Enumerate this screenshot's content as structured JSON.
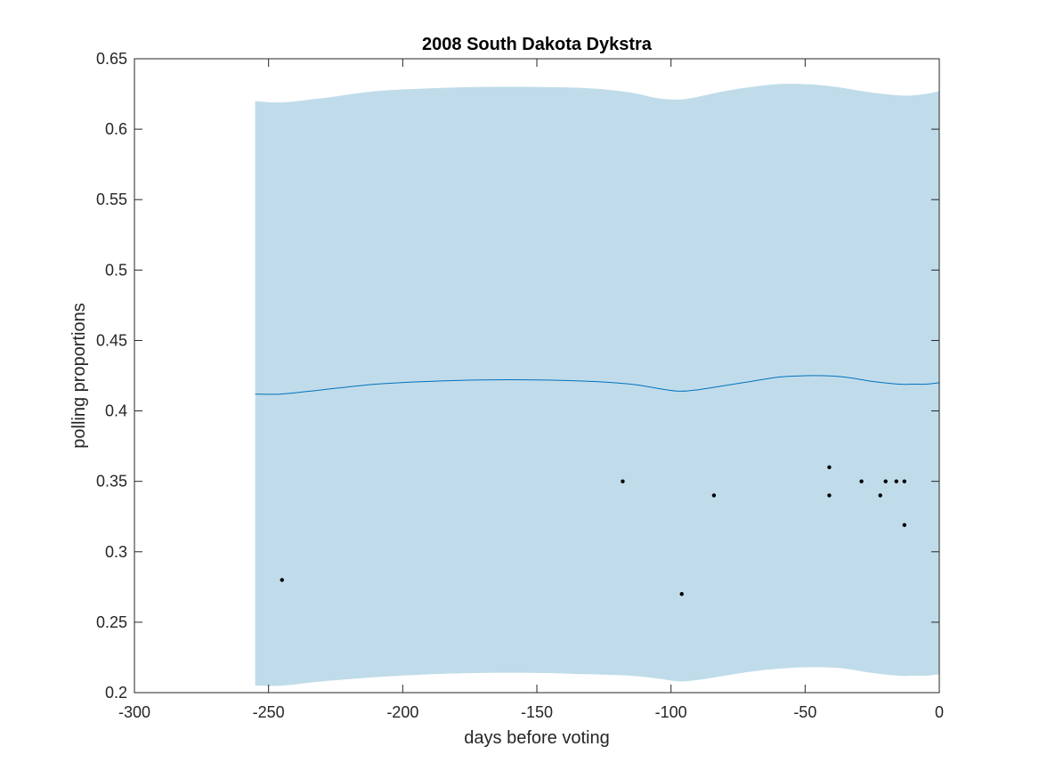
{
  "chart_data": {
    "type": "line",
    "title": "2008 South Dakota Dykstra",
    "xlabel": "days before voting",
    "ylabel": "polling proportions",
    "xlim": [
      -300,
      0
    ],
    "ylim": [
      0.2,
      0.65
    ],
    "xticks": [
      -300,
      -250,
      -200,
      -150,
      -100,
      -50,
      0
    ],
    "xtick_labels": [
      "-300",
      "-250",
      "-200",
      "-150",
      "-100",
      "-50",
      "0"
    ],
    "yticks": [
      0.2,
      0.25,
      0.3,
      0.35,
      0.4,
      0.45,
      0.5,
      0.55,
      0.6,
      0.65
    ],
    "ytick_labels": [
      "0.2",
      "0.25",
      "0.3",
      "0.35",
      "0.4",
      "0.45",
      "0.5",
      "0.55",
      "0.6",
      "0.65"
    ],
    "grid": false,
    "colors": {
      "band": "#c0dcea",
      "line": "#0072bd",
      "points": "#000000",
      "axes": "#262626"
    },
    "series": [
      {
        "type": "area",
        "x": [
          -255,
          -245,
          -230,
          -210,
          -190,
          -170,
          -150,
          -130,
          -115,
          -105,
          -97,
          -90,
          -80,
          -70,
          -60,
          -50,
          -43,
          -35,
          -25,
          -15,
          -10,
          -5,
          0
        ],
        "upper": [
          0.62,
          0.619,
          0.622,
          0.627,
          0.629,
          0.63,
          0.63,
          0.629,
          0.626,
          0.622,
          0.621,
          0.623,
          0.627,
          0.63,
          0.632,
          0.632,
          0.631,
          0.629,
          0.626,
          0.624,
          0.624,
          0.625,
          0.627
        ],
        "lower": [
          0.205,
          0.205,
          0.208,
          0.211,
          0.213,
          0.214,
          0.214,
          0.213,
          0.212,
          0.21,
          0.208,
          0.209,
          0.212,
          0.215,
          0.217,
          0.218,
          0.218,
          0.217,
          0.214,
          0.212,
          0.212,
          0.212,
          0.213
        ]
      },
      {
        "type": "line",
        "x": [
          -255,
          -245,
          -230,
          -210,
          -190,
          -170,
          -150,
          -130,
          -115,
          -105,
          -97,
          -90,
          -80,
          -70,
          -60,
          -50,
          -43,
          -35,
          -25,
          -15,
          -10,
          -5,
          0
        ],
        "y": [
          0.412,
          0.412,
          0.415,
          0.419,
          0.421,
          0.422,
          0.422,
          0.421,
          0.419,
          0.416,
          0.414,
          0.415,
          0.418,
          0.421,
          0.424,
          0.425,
          0.425,
          0.424,
          0.421,
          0.419,
          0.419,
          0.419,
          0.42
        ]
      },
      {
        "type": "scatter",
        "x": [
          -245,
          -118,
          -96,
          -84,
          -41,
          -41,
          -29,
          -22,
          -20,
          -16,
          -13,
          -13
        ],
        "y": [
          0.28,
          0.35,
          0.27,
          0.34,
          0.36,
          0.34,
          0.35,
          0.34,
          0.35,
          0.35,
          0.35,
          0.319
        ]
      }
    ]
  }
}
